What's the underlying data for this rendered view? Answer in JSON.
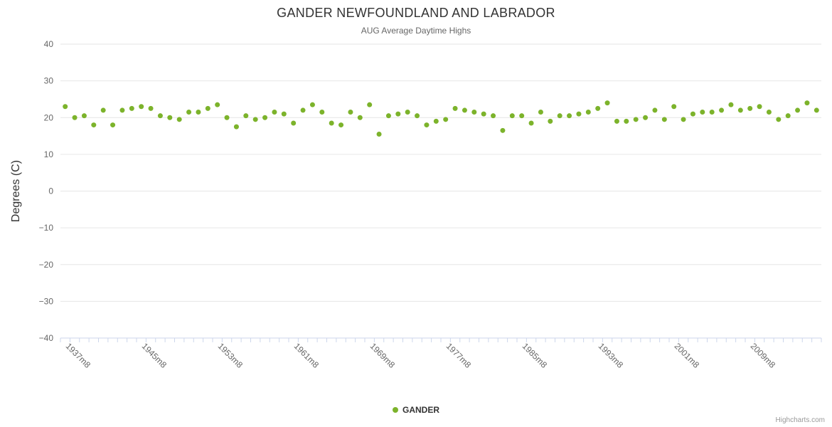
{
  "header": {
    "title": "GANDER NEWFOUNDLAND AND LABRADOR",
    "subtitle": "AUG Average Daytime Highs"
  },
  "legend": {
    "label": "GANDER"
  },
  "credits": {
    "label": "Highcharts.com"
  },
  "chart_data": {
    "type": "scatter",
    "title": "GANDER NEWFOUNDLAND AND LABRADOR",
    "subtitle": "AUG Average Daytime Highs",
    "xlabel": "",
    "ylabel": "Degrees (C)",
    "ylim": [
      -40,
      40
    ],
    "ytick_step": 10,
    "xtick_every": 8,
    "grid": true,
    "legend_position": "bottom",
    "credits": "Highcharts.com",
    "colors": {
      "point": "#7cb32b",
      "grid": "#e6e6e6",
      "axis_line": "#ccd6eb",
      "axis_label": "#666666",
      "axis_title": "#333333"
    },
    "categories": [
      "1937m8",
      "1938m8",
      "1939m8",
      "1940m8",
      "1941m8",
      "1942m8",
      "1943m8",
      "1944m8",
      "1945m8",
      "1946m8",
      "1947m8",
      "1948m8",
      "1949m8",
      "1950m8",
      "1951m8",
      "1952m8",
      "1953m8",
      "1954m8",
      "1955m8",
      "1956m8",
      "1957m8",
      "1958m8",
      "1959m8",
      "1960m8",
      "1961m8",
      "1962m8",
      "1963m8",
      "1964m8",
      "1965m8",
      "1966m8",
      "1967m8",
      "1968m8",
      "1969m8",
      "1970m8",
      "1971m8",
      "1972m8",
      "1973m8",
      "1974m8",
      "1975m8",
      "1976m8",
      "1977m8",
      "1978m8",
      "1979m8",
      "1980m8",
      "1981m8",
      "1982m8",
      "1983m8",
      "1984m8",
      "1985m8",
      "1986m8",
      "1987m8",
      "1988m8",
      "1989m8",
      "1990m8",
      "1991m8",
      "1992m8",
      "1993m8",
      "1994m8",
      "1995m8",
      "1996m8",
      "1997m8",
      "1998m8",
      "1999m8",
      "2000m8",
      "2001m8",
      "2002m8",
      "2003m8",
      "2004m8",
      "2005m8",
      "2006m8",
      "2007m8",
      "2008m8",
      "2009m8",
      "2010m8",
      "2011m8",
      "2012m8",
      "2013m8",
      "2014m8",
      "2015m8",
      "2016m8"
    ],
    "series": [
      {
        "name": "GANDER",
        "color": "#7cb32b",
        "values": [
          23,
          20,
          20.5,
          18,
          22,
          18,
          22,
          22.5,
          23,
          22.5,
          20.5,
          20,
          19.5,
          21.5,
          21.5,
          22.5,
          23.5,
          20,
          17.5,
          20.5,
          19.5,
          20,
          21.5,
          21,
          18.5,
          22,
          23.5,
          21.5,
          18.5,
          18,
          21.5,
          20,
          23.5,
          15.5,
          20.5,
          21,
          21.5,
          20.5,
          18,
          19,
          19.5,
          22.5,
          22,
          21.5,
          21,
          20.5,
          16.5,
          20.5,
          20.5,
          18.5,
          21.5,
          19,
          20.5,
          20.5,
          21,
          21.5,
          22.5,
          24,
          19,
          19,
          19.5,
          20,
          22,
          19.5,
          23,
          19.5,
          21,
          21.5,
          21.5,
          22,
          23.5,
          22,
          22.5,
          23,
          21.5,
          19.5,
          20.5,
          22,
          24,
          22
        ]
      }
    ]
  }
}
